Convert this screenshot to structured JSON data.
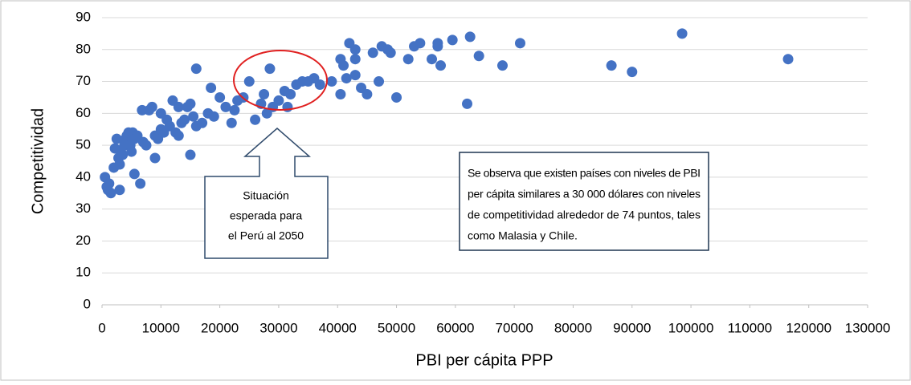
{
  "chart_data": {
    "type": "scatter",
    "x_label": "PBI per cápita PPP",
    "y_label": "Competitividad",
    "color": "#4472c4",
    "grid": true,
    "xlim": [
      0,
      130000
    ],
    "xticks": [
      0,
      10000,
      20000,
      30000,
      40000,
      50000,
      60000,
      70000,
      80000,
      90000,
      100000,
      110000,
      120000,
      130000
    ],
    "ylim": [
      0,
      90
    ],
    "yticks": [
      0,
      10,
      20,
      30,
      40,
      50,
      60,
      70,
      80,
      90
    ],
    "x": [
      500,
      800,
      1000,
      1500,
      1200,
      2000,
      2200,
      2500,
      2800,
      3000,
      3200,
      3500,
      3000,
      3800,
      4000,
      4200,
      4500,
      4800,
      5000,
      5200,
      5500,
      6000,
      5500,
      6500,
      6800,
      7000,
      7500,
      8000,
      8500,
      9000,
      9000,
      9500,
      10000,
      10000,
      10500,
      11000,
      11500,
      12000,
      12500,
      13000,
      13000,
      13500,
      14000,
      14500,
      15000,
      15000,
      15500,
      16000,
      16000,
      17000,
      18000,
      18500,
      19000,
      20000,
      21000,
      22000,
      22500,
      23000,
      24000,
      25000,
      26000,
      27000,
      27500,
      28000,
      28500,
      29000,
      30000,
      31000,
      31500,
      32000,
      33000,
      34000,
      35000,
      36000,
      37000,
      39000,
      40500,
      40500,
      41000,
      41500,
      42000,
      43000,
      43000,
      43000,
      44000,
      45000,
      46000,
      47000,
      47500,
      48500,
      49000,
      50000,
      52000,
      53000,
      54000,
      56000,
      57000,
      57500,
      57000,
      59500,
      62000,
      62500,
      64000,
      68000,
      71000,
      86500,
      90000,
      98500,
      116500
    ],
    "values": [
      40,
      37,
      36,
      35,
      38,
      43,
      49,
      52,
      46,
      44,
      48,
      47,
      36,
      50,
      52,
      53,
      54,
      50,
      48,
      54,
      52,
      53,
      41,
      38,
      61,
      51,
      50,
      61,
      62,
      46,
      53,
      52,
      60,
      55,
      54,
      58,
      56,
      64,
      54,
      62,
      53,
      57,
      58,
      62,
      63,
      47,
      59,
      56,
      74,
      57,
      60,
      68,
      59,
      65,
      62,
      57,
      61,
      64,
      65,
      70,
      58,
      63,
      66,
      60,
      74,
      62,
      64,
      67,
      62,
      66,
      69,
      70,
      70,
      71,
      69,
      70,
      66,
      77,
      75,
      71,
      82,
      77,
      80,
      72,
      68,
      66,
      79,
      70,
      81,
      80,
      79,
      65,
      77,
      81,
      82,
      77,
      82,
      75,
      81,
      83,
      63,
      84,
      78,
      75,
      82,
      75,
      73,
      85,
      77
    ],
    "callout": [
      "Situación",
      "esperada para",
      "el Perú al 2050"
    ],
    "note": [
      "Se observa que existen países con niveles de PBI",
      "per cápita similares a 30 000 dólares con niveles",
      "de competitividad alrededor de 74 puntos, tales",
      "como Malasia y Chile."
    ]
  }
}
